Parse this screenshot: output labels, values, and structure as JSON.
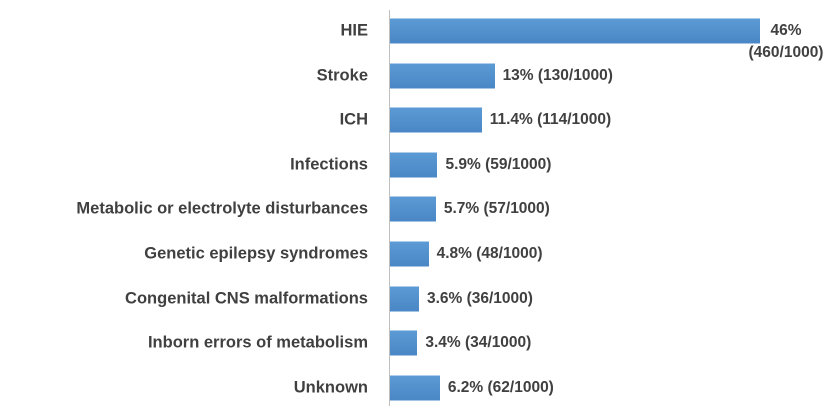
{
  "chart_data": {
    "type": "hbar",
    "categories": [
      "HIE",
      "Stroke",
      "ICH",
      "Infections",
      "Metabolic or electrolyte disturbances",
      "Genetic epilepsy syndromes",
      "Congenital CNS malformations",
      "Inborn errors of metabolism",
      "Unknown"
    ],
    "values": [
      46,
      13,
      11.4,
      5.9,
      5.7,
      4.8,
      3.6,
      3.4,
      6.2
    ],
    "value_labels": [
      "46% (460/1000)",
      "13% (130/1000)",
      "11.4% (114/1000)",
      "5.9% (59/1000)",
      "5.7% (57/1000)",
      "4.8% (48/1000)",
      "3.6% (36/1000)",
      "3.4% (34/1000)",
      "6.2% (62/1000)"
    ],
    "color": "#5b9bd5"
  }
}
